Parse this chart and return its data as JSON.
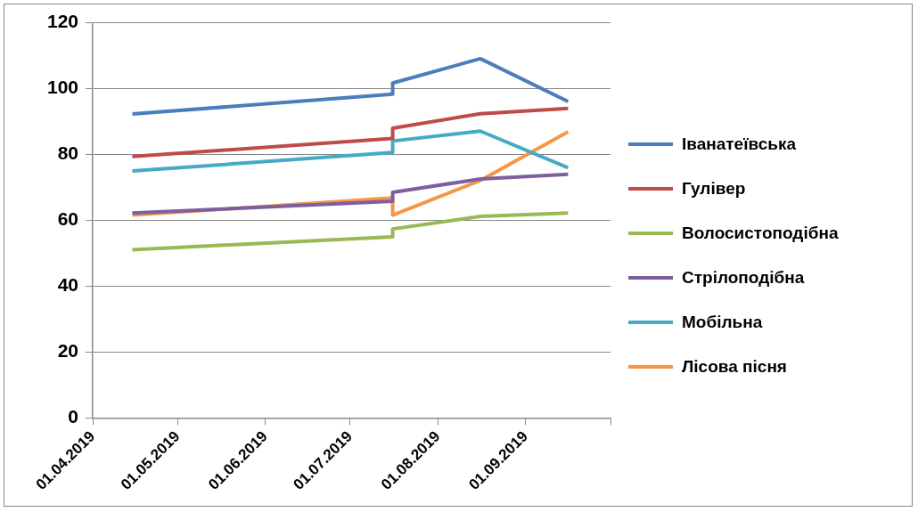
{
  "chart_data": {
    "type": "line",
    "x": [
      "2019-04-15",
      "2019-07-16",
      "2019-07-16",
      "2019-08-16",
      "2019-09-16"
    ],
    "series": [
      {
        "name": "Іванатеївська",
        "color": "#4a7ebb",
        "values": [
          92.3,
          98.3,
          101.7,
          109.1,
          96.1
        ]
      },
      {
        "name": "Гулівер",
        "color": "#be4b48",
        "values": [
          79.4,
          84.9,
          88,
          92.4,
          94
        ]
      },
      {
        "name": "Волосистоподібна",
        "color": "#98b954",
        "values": [
          51.1,
          55,
          57.4,
          61.2,
          62.2
        ]
      },
      {
        "name": "Стрілоподібна",
        "color": "#7d5fa0",
        "values": [
          62.2,
          65.8,
          68.5,
          72.6,
          74
        ]
      },
      {
        "name": "Мобільна",
        "color": "#46aac5",
        "values": [
          75,
          80.6,
          84.1,
          87.1,
          76
        ]
      },
      {
        "name": "Лісова пісня",
        "color": "#f79646",
        "values": [
          61.6,
          66.8,
          61.6,
          72.1,
          86.9
        ]
      }
    ],
    "xlim": [
      "2019-04-01",
      "2019-10-01"
    ],
    "xticks": [
      {
        "value": "2019-04-01",
        "label": "01.04.2019"
      },
      {
        "value": "2019-05-01",
        "label": "01.05.2019"
      },
      {
        "value": "2019-06-01",
        "label": "01.06.2019"
      },
      {
        "value": "2019-07-01",
        "label": "01.07.2019"
      },
      {
        "value": "2019-08-01",
        "label": "01.08.2019"
      },
      {
        "value": "2019-09-01",
        "label": "01.09.2019"
      },
      {
        "value": "2019-10-01",
        "label": null
      }
    ],
    "ylim": [
      0,
      120
    ],
    "yticks": [
      0,
      20,
      40,
      60,
      80,
      100,
      120
    ],
    "grid": "y",
    "legend": "right",
    "marker": "none",
    "line_style": "solid"
  }
}
